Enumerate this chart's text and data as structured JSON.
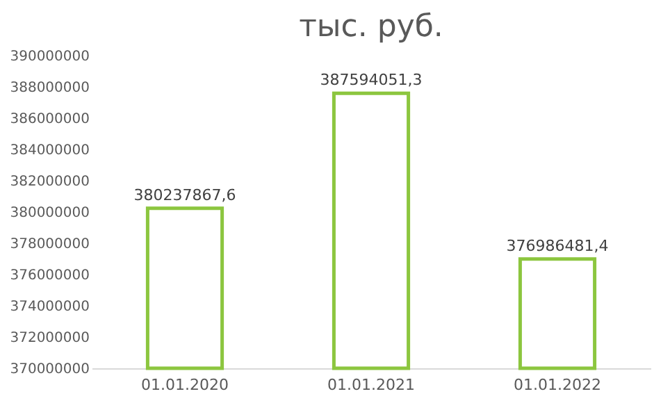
{
  "chart_data": {
    "type": "bar",
    "title": "тыс. руб.",
    "categories": [
      "01.01.2020",
      "01.01.2021",
      "01.01.2022"
    ],
    "values": [
      380237867.6,
      387594051.3,
      376986481.4
    ],
    "value_labels": [
      "380237867,6",
      "387594051,3",
      "376986481,4"
    ],
    "color": "#8cc63f",
    "ylim": [
      370000000,
      390000000
    ],
    "yticks": [
      370000000,
      372000000,
      374000000,
      376000000,
      378000000,
      380000000,
      382000000,
      384000000,
      386000000,
      388000000,
      390000000
    ],
    "grid": false
  }
}
